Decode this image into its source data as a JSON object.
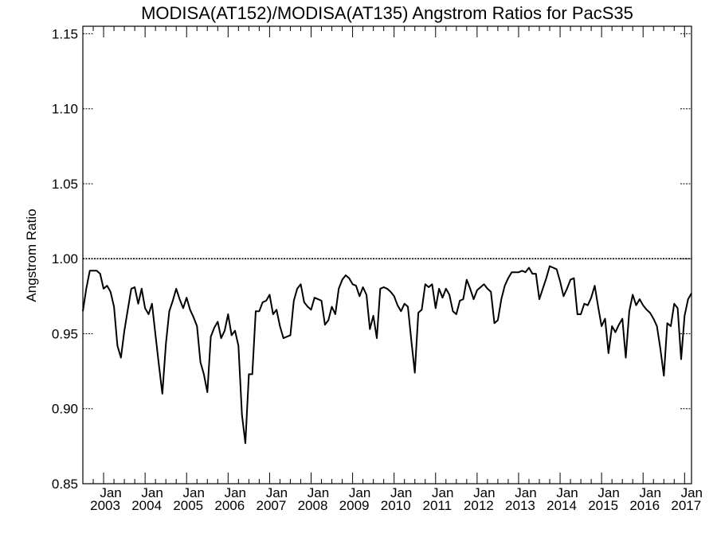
{
  "chart_data": {
    "type": "line",
    "title": "MODISA(AT152)/MODISA(AT135)  Angstrom Ratios for PacS35",
    "xlabel": "",
    "ylabel": "Angstrom Ratio",
    "ylim": [
      0.85,
      1.155
    ],
    "xlim": [
      "2002-07-01",
      "2017-03-01"
    ],
    "yticks": [
      {
        "value": 0.85,
        "label": "0.85"
      },
      {
        "value": 0.9,
        "label": "0.90"
      },
      {
        "value": 0.95,
        "label": "0.95"
      },
      {
        "value": 1.0,
        "label": "1.00"
      },
      {
        "value": 1.05,
        "label": "1.05"
      },
      {
        "value": 1.1,
        "label": "1.10"
      },
      {
        "value": 1.15,
        "label": "1.15"
      }
    ],
    "xticks": [
      {
        "value": "2003-01",
        "month": "Jan",
        "year": "2003"
      },
      {
        "value": "2004-01",
        "month": "Jan",
        "year": "2004"
      },
      {
        "value": "2005-01",
        "month": "Jan",
        "year": "2005"
      },
      {
        "value": "2006-01",
        "month": "Jan",
        "year": "2006"
      },
      {
        "value": "2007-01",
        "month": "Jan",
        "year": "2007"
      },
      {
        "value": "2008-01",
        "month": "Jan",
        "year": "2008"
      },
      {
        "value": "2009-01",
        "month": "Jan",
        "year": "2009"
      },
      {
        "value": "2010-01",
        "month": "Jan",
        "year": "2010"
      },
      {
        "value": "2011-01",
        "month": "Jan",
        "year": "2011"
      },
      {
        "value": "2012-01",
        "month": "Jan",
        "year": "2012"
      },
      {
        "value": "2013-01",
        "month": "Jan",
        "year": "2013"
      },
      {
        "value": "2014-01",
        "month": "Jan",
        "year": "2014"
      },
      {
        "value": "2015-01",
        "month": "Jan",
        "year": "2015"
      },
      {
        "value": "2016-01",
        "month": "Jan",
        "year": "2016"
      },
      {
        "value": "2017-01",
        "month": "Jan",
        "year": "2017"
      }
    ],
    "reference_line": {
      "y": 1.0,
      "style": "dotted"
    },
    "grid": false,
    "series": [
      {
        "color": "#000000",
        "x": [
          "2002-07",
          "2002-08",
          "2002-09",
          "2002-10",
          "2002-11",
          "2002-12",
          "2003-01",
          "2003-02",
          "2003-03",
          "2003-04",
          "2003-05",
          "2003-06",
          "2003-07",
          "2003-08",
          "2003-09",
          "2003-10",
          "2003-11",
          "2003-12",
          "2004-01",
          "2004-02",
          "2004-03",
          "2004-04",
          "2004-05",
          "2004-06",
          "2004-07",
          "2004-08",
          "2004-09",
          "2004-10",
          "2004-11",
          "2004-12",
          "2005-01",
          "2005-02",
          "2005-03",
          "2005-04",
          "2005-05",
          "2005-06",
          "2005-07",
          "2005-08",
          "2005-09",
          "2005-10",
          "2005-11",
          "2005-12",
          "2006-01",
          "2006-02",
          "2006-03",
          "2006-04",
          "2006-05",
          "2006-06",
          "2006-07",
          "2006-08",
          "2006-09",
          "2006-10",
          "2006-11",
          "2006-12",
          "2007-01",
          "2007-02",
          "2007-03",
          "2007-04",
          "2007-05",
          "2007-06",
          "2007-07",
          "2007-08",
          "2007-09",
          "2007-10",
          "2007-11",
          "2007-12",
          "2008-01",
          "2008-02",
          "2008-03",
          "2008-04",
          "2008-05",
          "2008-06",
          "2008-07",
          "2008-08",
          "2008-09",
          "2008-10",
          "2008-11",
          "2008-12",
          "2009-01",
          "2009-02",
          "2009-03",
          "2009-04",
          "2009-05",
          "2009-06",
          "2009-07",
          "2009-08",
          "2009-09",
          "2009-10",
          "2009-11",
          "2009-12",
          "2010-01",
          "2010-02",
          "2010-03",
          "2010-04",
          "2010-05",
          "2010-06",
          "2010-07",
          "2010-08",
          "2010-09",
          "2010-10",
          "2010-11",
          "2010-12",
          "2011-01",
          "2011-02",
          "2011-03",
          "2011-04",
          "2011-05",
          "2011-06",
          "2011-07",
          "2011-08",
          "2011-09",
          "2011-10",
          "2011-11",
          "2011-12",
          "2012-01",
          "2012-02",
          "2012-03",
          "2012-04",
          "2012-05",
          "2012-06",
          "2012-07",
          "2012-08",
          "2012-09",
          "2012-10",
          "2012-11",
          "2012-12",
          "2013-01",
          "2013-02",
          "2013-03",
          "2013-04",
          "2013-05",
          "2013-06",
          "2013-07",
          "2013-08",
          "2013-09",
          "2013-10",
          "2013-11",
          "2013-12",
          "2014-01",
          "2014-02",
          "2014-03",
          "2014-04",
          "2014-05",
          "2014-06",
          "2014-07",
          "2014-08",
          "2014-09",
          "2014-10",
          "2014-11",
          "2014-12",
          "2015-01",
          "2015-02",
          "2015-03",
          "2015-04",
          "2015-05",
          "2015-06",
          "2015-07",
          "2015-08",
          "2015-09",
          "2015-10",
          "2015-11",
          "2015-12",
          "2016-01",
          "2016-02",
          "2016-03",
          "2016-04",
          "2016-05",
          "2016-06",
          "2016-07",
          "2016-08",
          "2016-09",
          "2016-10",
          "2016-11",
          "2016-12",
          "2017-01",
          "2017-02",
          "2017-03"
        ],
        "values": [
          0.965,
          0.98,
          0.992,
          0.992,
          0.992,
          0.99,
          0.98,
          0.982,
          0.978,
          0.968,
          0.942,
          0.934,
          0.952,
          0.966,
          0.98,
          0.981,
          0.97,
          0.98,
          0.967,
          0.963,
          0.97,
          0.949,
          0.929,
          0.91,
          0.943,
          0.965,
          0.972,
          0.98,
          0.973,
          0.967,
          0.974,
          0.966,
          0.961,
          0.955,
          0.931,
          0.923,
          0.911,
          0.948,
          0.954,
          0.958,
          0.947,
          0.952,
          0.963,
          0.949,
          0.952,
          0.942,
          0.896,
          0.877,
          0.923,
          0.923,
          0.965,
          0.965,
          0.971,
          0.972,
          0.976,
          0.963,
          0.966,
          0.955,
          0.947,
          0.948,
          0.949,
          0.972,
          0.98,
          0.983,
          0.971,
          0.968,
          0.966,
          0.974,
          0.973,
          0.972,
          0.956,
          0.959,
          0.968,
          0.963,
          0.98,
          0.986,
          0.989,
          0.987,
          0.983,
          0.982,
          0.975,
          0.981,
          0.976,
          0.953,
          0.962,
          0.947,
          0.98,
          0.981,
          0.98,
          0.978,
          0.975,
          0.969,
          0.965,
          0.97,
          0.968,
          0.945,
          0.924,
          0.964,
          0.966,
          0.983,
          0.981,
          0.983,
          0.967,
          0.98,
          0.974,
          0.98,
          0.976,
          0.965,
          0.963,
          0.972,
          0.973,
          0.986,
          0.98,
          0.973,
          0.979,
          0.981,
          0.983,
          0.98,
          0.978,
          0.957,
          0.959,
          0.973,
          0.982,
          0.987,
          0.991,
          0.991,
          0.991,
          0.992,
          0.991,
          0.994,
          0.99,
          0.99,
          0.973,
          0.98,
          0.987,
          0.995,
          0.994,
          0.993,
          0.985,
          0.975,
          0.98,
          0.986,
          0.987,
          0.963,
          0.963,
          0.97,
          0.969,
          0.974,
          0.982,
          0.968,
          0.955,
          0.96,
          0.937,
          0.955,
          0.951,
          0.956,
          0.96,
          0.934,
          0.965,
          0.976,
          0.969,
          0.973,
          0.969,
          0.966,
          0.964,
          0.96,
          0.955,
          0.94,
          0.922,
          0.957,
          0.955,
          0.97,
          0.967,
          0.933,
          0.962,
          0.973,
          0.977
        ]
      }
    ]
  }
}
